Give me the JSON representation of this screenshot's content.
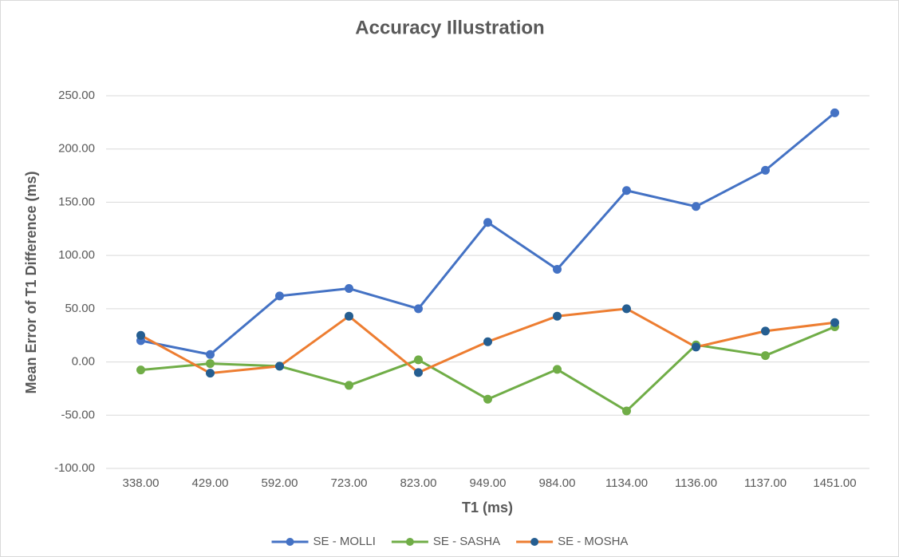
{
  "chart_data": {
    "type": "line",
    "title": "Accuracy Illustration",
    "x_label": "T1 (ms)",
    "y_label": "Mean Error of T1 Difference (ms)",
    "categories": [
      "338.00",
      "429.00",
      "592.00",
      "723.00",
      "823.00",
      "949.00",
      "984.00",
      "1134.00",
      "1136.00",
      "1137.00",
      "1451.00"
    ],
    "series": [
      {
        "name": "SE - MOLLI",
        "color": "#4472c4",
        "marker_color": "#4472c4",
        "values": [
          20,
          7,
          62,
          69,
          50,
          131,
          87,
          161,
          146,
          180,
          234
        ]
      },
      {
        "name": "SE - SASHA",
        "color": "#70ad47",
        "marker_color": "#70ad47",
        "values": [
          -7.5,
          -1.5,
          -4,
          -22,
          2,
          -35,
          -7,
          -46,
          16,
          6,
          33
        ]
      },
      {
        "name": "SE - MOSHA",
        "color": "#ed7d31",
        "marker_color": "#255e91",
        "values": [
          25,
          -10.5,
          -4,
          43,
          -10,
          19,
          43,
          50,
          14,
          29,
          37
        ]
      }
    ],
    "ylim": [
      -100,
      250
    ],
    "yticks": [
      {
        "value": -100,
        "label": "-100.00"
      },
      {
        "value": -50,
        "label": "-50.00"
      },
      {
        "value": 0,
        "label": "0.00"
      },
      {
        "value": 50,
        "label": "50.00"
      },
      {
        "value": 100,
        "label": "100.00"
      },
      {
        "value": 150,
        "label": "150.00"
      },
      {
        "value": 200,
        "label": "200.00"
      },
      {
        "value": 250,
        "label": "250.00"
      }
    ],
    "grid": true,
    "legend": "bottom"
  }
}
